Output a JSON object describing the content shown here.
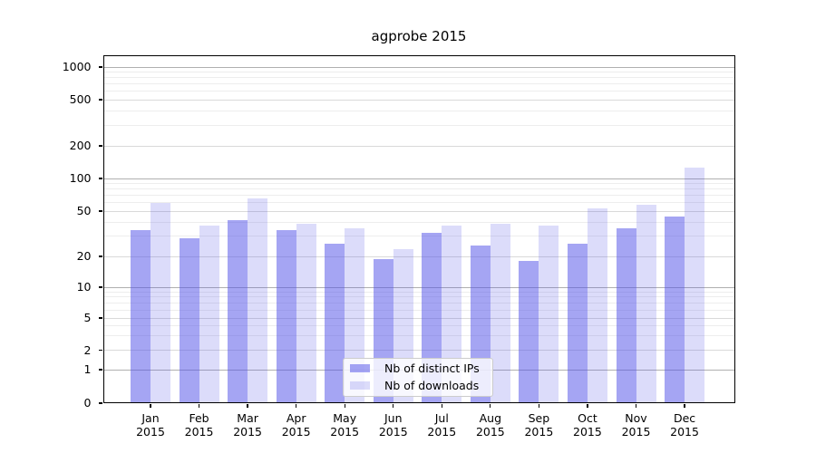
{
  "chart_data": {
    "type": "bar",
    "title": "agprobe 2015",
    "categories": [
      "Jan 2015",
      "Feb 2015",
      "Mar 2015",
      "Apr 2015",
      "May 2015",
      "Jun 2015",
      "Jul 2015",
      "Aug 2015",
      "Sep 2015",
      "Oct 2015",
      "Nov 2015",
      "Dec 2015"
    ],
    "series": [
      {
        "name": "Nb of distinct IPs",
        "color": "#5252e8",
        "alpha": 0.52,
        "rendered_color": "#a5a5f3",
        "values": [
          34,
          29,
          42,
          34,
          26,
          19,
          32,
          25,
          18,
          26,
          35,
          45
        ]
      },
      {
        "name": "Nb of downloads",
        "color": "#5252e8",
        "alpha": 0.2,
        "rendered_color": "#dcdcfa",
        "values": [
          60,
          37,
          66,
          39,
          35,
          23,
          37,
          39,
          37,
          53,
          57,
          125
        ]
      }
    ],
    "xlabel": "",
    "ylabel": "",
    "yscale": "symlog",
    "yticks": [
      0,
      1,
      2,
      5,
      10,
      20,
      50,
      100,
      200,
      500,
      1000
    ],
    "minor_gridlines": [
      3,
      4,
      6,
      7,
      8,
      9,
      30,
      40,
      60,
      70,
      80,
      90,
      300,
      400,
      600,
      700,
      800,
      900
    ],
    "ylim": [
      0,
      1270
    ],
    "grid": true,
    "legend_position": "lower center inside plot",
    "gridline_colors": {
      "power_of_ten": "#b0b0b0",
      "labeled": "#d9d9d9",
      "minor": "#ededed"
    }
  }
}
